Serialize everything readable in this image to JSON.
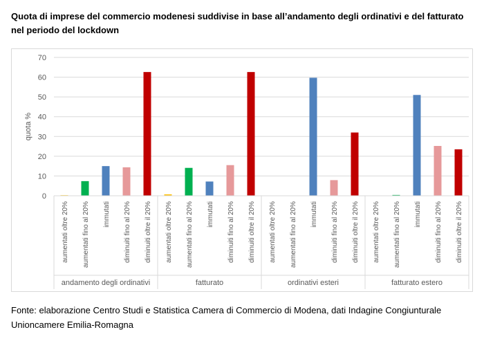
{
  "title": "Quota di imprese del commercio modenesi suddivise in base all’andamento degli ordinativi e del fatturato nel periodo del lockdown",
  "source": "Fonte: elaborazione Centro Studi e Statistica Camera di Commercio di Modena, dati Indagine Congiunturale Unioncamere Emilia-Romagna",
  "chart_data": {
    "type": "bar",
    "title": "",
    "xlabel": "",
    "ylabel": "quota %",
    "ylim": [
      0,
      70
    ],
    "yticks": [
      0,
      10,
      20,
      30,
      40,
      50,
      60,
      70
    ],
    "grid": true,
    "legend": "none",
    "categories": [
      "aumentati oltre 20%",
      "aumentati fino al 20%",
      "immutati",
      "diminuiti fino al 20%",
      "diminuiti oltre il 20%"
    ],
    "category_colors": [
      "#ffc000",
      "#00b050",
      "#4f81bd",
      "#e6999a",
      "#c00000"
    ],
    "groups": [
      {
        "name": "andamento degli ordinativi",
        "values": [
          0.3,
          7.4,
          15.0,
          14.4,
          62.6
        ]
      },
      {
        "name": "fatturato",
        "values": [
          0.7,
          14.1,
          7.2,
          15.5,
          62.6
        ]
      },
      {
        "name": "ordinativi esteri",
        "values": [
          0,
          0,
          59.7,
          7.9,
          32.0
        ]
      },
      {
        "name": "fatturato estero",
        "values": [
          0,
          0.4,
          51.0,
          25.2,
          23.5
        ]
      }
    ]
  }
}
